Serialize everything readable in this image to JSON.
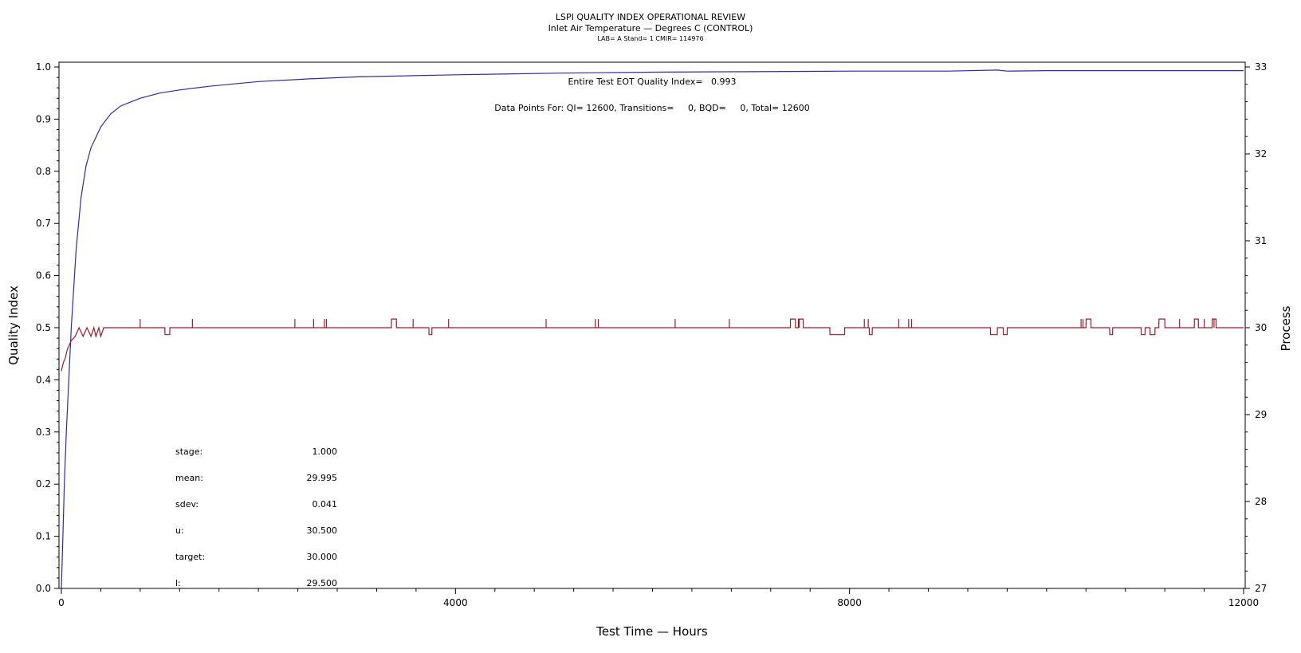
{
  "chart_data": {
    "type": "line",
    "title": "LSPI QUALITY INDEX OPERATIONAL REVIEW",
    "subtitle": "Inlet Air Temperature — Degrees C (CONTROL)",
    "subtitle2": "LAB= A Stand= 1 CMIR= 114976",
    "xlabel": "Test Time — Hours",
    "ylabel": "Quality Index",
    "y2label": "Process",
    "xlim": [
      0,
      12000
    ],
    "ylim": [
      0,
      1
    ],
    "y2lim": [
      27,
      33
    ],
    "xticks": [
      "0",
      "4000",
      "8000",
      "12000"
    ],
    "yticks": [
      "0.0",
      "0.1",
      "0.2",
      "0.3",
      "0.4",
      "0.5",
      "0.6",
      "0.7",
      "0.8",
      "0.9",
      "1.0"
    ],
    "y2ticks": [
      "27",
      "28",
      "29",
      "30",
      "31",
      "32",
      "33"
    ],
    "grid": false,
    "annotations": {
      "eot": "Entire Test EOT Quality Index=   0.993",
      "datapoints": "Data Points For: QI= 12600, Transitions=     0, BQD=     0, Total= 12600"
    },
    "stats": [
      {
        "label": "stage:",
        "value": "1.000"
      },
      {
        "label": "mean:",
        "value": "29.995"
      },
      {
        "label": "sdev:",
        "value": "0.041"
      },
      {
        "label": "u:",
        "value": "30.500"
      },
      {
        "label": "target:",
        "value": "30.000"
      },
      {
        "label": "l:",
        "value": "29.500"
      }
    ],
    "series": [
      {
        "axis": "left",
        "color": "#2b2ba8",
        "x": [
          0,
          15,
          30,
          50,
          75,
          100,
          150,
          200,
          250,
          300,
          400,
          500,
          600,
          800,
          1000,
          1200,
          1500,
          2000,
          2500,
          3000,
          4000,
          5000,
          6000,
          7000,
          8000,
          9000,
          9500,
          9600,
          10000,
          11000,
          12000
        ],
        "y": [
          0.0,
          0.1,
          0.2,
          0.3,
          0.4,
          0.5,
          0.65,
          0.75,
          0.81,
          0.845,
          0.885,
          0.91,
          0.925,
          0.94,
          0.95,
          0.956,
          0.963,
          0.972,
          0.977,
          0.981,
          0.985,
          0.988,
          0.99,
          0.991,
          0.992,
          0.992,
          0.994,
          0.992,
          0.993,
          0.993,
          0.993
        ]
      },
      {
        "axis": "right",
        "color": "#9b1b2a",
        "x": [
          0,
          20,
          40,
          60,
          80,
          100,
          140,
          180,
          220,
          260,
          300,
          330,
          350,
          380,
          400,
          430,
          450,
          1050,
          1051,
          1100,
          1101,
          3350,
          3351,
          3400,
          3401,
          3730,
          3731,
          3760,
          3761,
          7400,
          7401,
          7450,
          7451,
          7480,
          7481,
          7530,
          7531,
          7800,
          7801,
          7950,
          7951,
          8200,
          8201,
          8230,
          8231,
          9430,
          9431,
          9500,
          9501,
          9560,
          9561,
          9600,
          9601,
          10400,
          10401,
          10450,
          10451,
          10640,
          10641,
          10670,
          10671,
          10960,
          10961,
          11000,
          11001,
          11050,
          11051,
          11100,
          11101,
          11140,
          11141,
          11200,
          11201,
          11230,
          11231,
          11500,
          11501,
          11540,
          11541,
          11680,
          11681,
          11720,
          11721,
          12000
        ],
        "y": [
          29.5,
          29.6,
          29.65,
          29.75,
          29.8,
          29.85,
          29.9,
          30.0,
          29.9,
          30.0,
          29.9,
          30.0,
          29.9,
          30.0,
          29.9,
          30.0,
          30.0,
          30.0,
          29.92,
          29.92,
          30.0,
          30.0,
          30.1,
          30.1,
          30.0,
          30.0,
          29.92,
          29.92,
          30.0,
          30.0,
          30.1,
          30.1,
          30.0,
          30.0,
          30.1,
          30.1,
          30.0,
          30.0,
          29.92,
          29.92,
          30.0,
          30.0,
          29.92,
          29.92,
          30.0,
          30.0,
          29.92,
          29.92,
          30.0,
          30.0,
          29.92,
          29.92,
          30.0,
          30.0,
          30.1,
          30.1,
          30.0,
          30.0,
          29.92,
          29.92,
          30.0,
          30.0,
          29.92,
          29.92,
          30.0,
          30.0,
          29.92,
          29.92,
          30.0,
          30.0,
          30.1,
          30.1,
          30.0,
          30.0,
          30.0,
          30.0,
          30.1,
          30.1,
          30.0,
          30.0,
          30.1,
          30.1,
          30.0,
          30.0
        ],
        "spikes": [
          800,
          1330,
          2370,
          2560,
          2670,
          2690,
          3570,
          3930,
          4920,
          5420,
          5450,
          6230,
          6780,
          7490,
          8150,
          8190,
          8500,
          8600,
          8630,
          10350,
          10370,
          11350,
          11600,
          11700
        ]
      }
    ]
  }
}
